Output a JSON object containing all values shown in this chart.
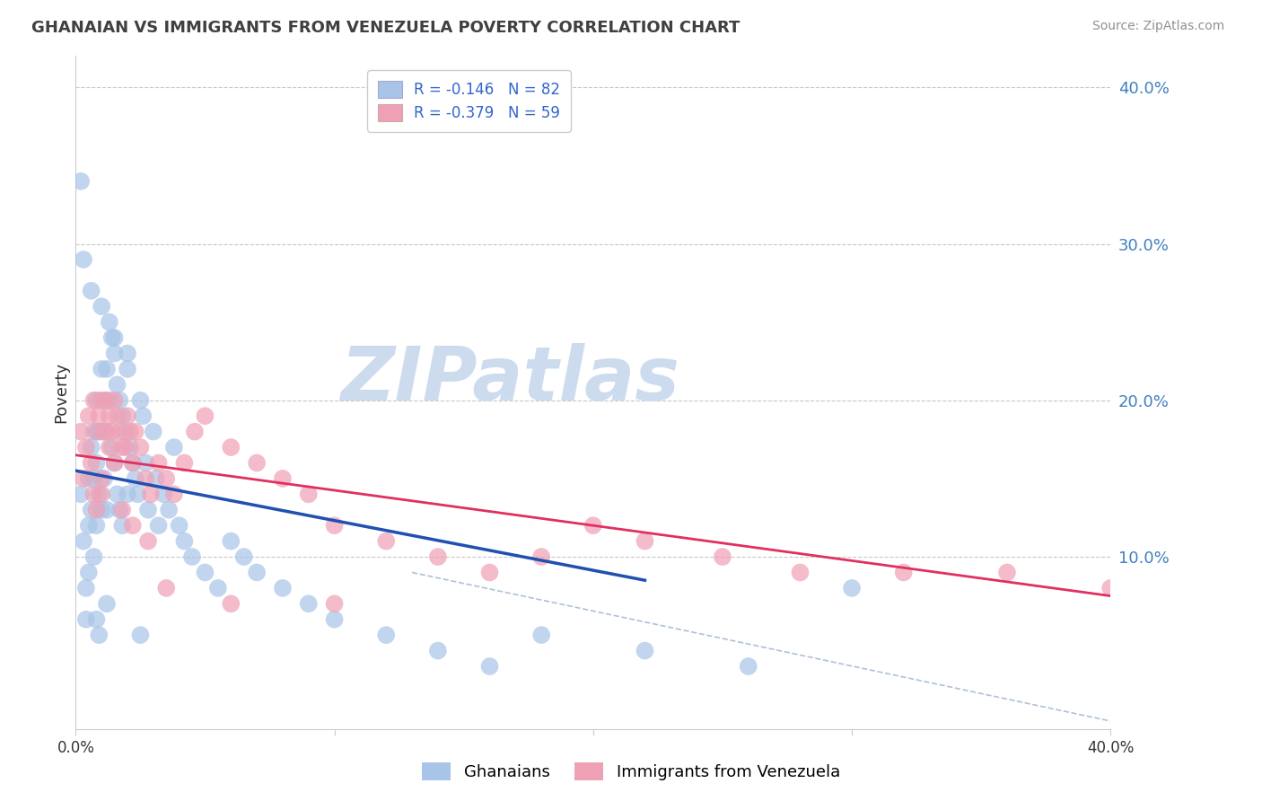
{
  "title": "GHANAIAN VS IMMIGRANTS FROM VENEZUELA POVERTY CORRELATION CHART",
  "source": "Source: ZipAtlas.com",
  "ylabel": "Poverty",
  "xlim": [
    0.0,
    0.4
  ],
  "ylim": [
    -0.01,
    0.42
  ],
  "yticks": [
    0.1,
    0.2,
    0.3,
    0.4
  ],
  "ytick_labels": [
    "10.0%",
    "20.0%",
    "30.0%",
    "40.0%"
  ],
  "xticks": [
    0.0,
    0.1,
    0.2,
    0.3,
    0.4
  ],
  "xtick_labels": [
    "0.0%",
    "",
    "",
    "",
    "40.0%"
  ],
  "background_color": "#ffffff",
  "grid_color": "#c8c8c8",
  "blue_color": "#a8c4e8",
  "pink_color": "#f0a0b4",
  "blue_line_color": "#2050b0",
  "pink_line_color": "#e03060",
  "dashed_line_color": "#b0c0d8",
  "title_color": "#404040",
  "source_color": "#909090",
  "legend_r1": "R = -0.146",
  "legend_n1": "N = 82",
  "legend_r2": "R = -0.379",
  "legend_n2": "N = 59",
  "label1": "Ghanaians",
  "label2": "Immigrants from Venezuela",
  "watermark_text": "ZIPatlas",
  "watermark_color": "#ccdcee",
  "watermark_fontsize": 60,
  "blue_scatter_x": [
    0.002,
    0.003,
    0.004,
    0.004,
    0.005,
    0.005,
    0.005,
    0.006,
    0.006,
    0.007,
    0.007,
    0.007,
    0.008,
    0.008,
    0.008,
    0.009,
    0.009,
    0.01,
    0.01,
    0.01,
    0.011,
    0.011,
    0.012,
    0.012,
    0.012,
    0.013,
    0.013,
    0.014,
    0.014,
    0.015,
    0.015,
    0.016,
    0.016,
    0.017,
    0.017,
    0.018,
    0.018,
    0.019,
    0.02,
    0.02,
    0.021,
    0.022,
    0.023,
    0.024,
    0.025,
    0.026,
    0.027,
    0.028,
    0.03,
    0.031,
    0.032,
    0.034,
    0.036,
    0.038,
    0.04,
    0.042,
    0.045,
    0.05,
    0.055,
    0.06,
    0.065,
    0.07,
    0.08,
    0.09,
    0.1,
    0.12,
    0.14,
    0.16,
    0.18,
    0.22,
    0.26,
    0.3,
    0.002,
    0.003,
    0.006,
    0.01,
    0.015,
    0.02,
    0.025,
    0.008,
    0.012,
    0.009
  ],
  "blue_scatter_y": [
    0.14,
    0.11,
    0.08,
    0.06,
    0.15,
    0.12,
    0.09,
    0.17,
    0.13,
    0.18,
    0.15,
    0.1,
    0.2,
    0.16,
    0.12,
    0.18,
    0.14,
    0.22,
    0.18,
    0.13,
    0.2,
    0.15,
    0.22,
    0.18,
    0.13,
    0.25,
    0.2,
    0.24,
    0.17,
    0.23,
    0.16,
    0.21,
    0.14,
    0.2,
    0.13,
    0.19,
    0.12,
    0.18,
    0.22,
    0.14,
    0.17,
    0.16,
    0.15,
    0.14,
    0.2,
    0.19,
    0.16,
    0.13,
    0.18,
    0.15,
    0.12,
    0.14,
    0.13,
    0.17,
    0.12,
    0.11,
    0.1,
    0.09,
    0.08,
    0.11,
    0.1,
    0.09,
    0.08,
    0.07,
    0.06,
    0.05,
    0.04,
    0.03,
    0.05,
    0.04,
    0.03,
    0.08,
    0.34,
    0.29,
    0.27,
    0.26,
    0.24,
    0.23,
    0.05,
    0.06,
    0.07,
    0.05
  ],
  "pink_scatter_x": [
    0.002,
    0.003,
    0.004,
    0.005,
    0.006,
    0.007,
    0.007,
    0.008,
    0.009,
    0.01,
    0.01,
    0.011,
    0.012,
    0.013,
    0.014,
    0.015,
    0.015,
    0.016,
    0.017,
    0.018,
    0.019,
    0.02,
    0.021,
    0.022,
    0.023,
    0.025,
    0.027,
    0.029,
    0.032,
    0.035,
    0.038,
    0.042,
    0.046,
    0.05,
    0.06,
    0.07,
    0.08,
    0.09,
    0.1,
    0.12,
    0.14,
    0.16,
    0.18,
    0.2,
    0.22,
    0.25,
    0.28,
    0.32,
    0.36,
    0.4,
    0.008,
    0.01,
    0.013,
    0.018,
    0.022,
    0.028,
    0.035,
    0.06,
    0.1
  ],
  "pink_scatter_y": [
    0.18,
    0.15,
    0.17,
    0.19,
    0.16,
    0.2,
    0.14,
    0.18,
    0.19,
    0.2,
    0.15,
    0.18,
    0.2,
    0.19,
    0.18,
    0.2,
    0.16,
    0.19,
    0.18,
    0.17,
    0.17,
    0.19,
    0.18,
    0.16,
    0.18,
    0.17,
    0.15,
    0.14,
    0.16,
    0.15,
    0.14,
    0.16,
    0.18,
    0.19,
    0.17,
    0.16,
    0.15,
    0.14,
    0.12,
    0.11,
    0.1,
    0.09,
    0.1,
    0.12,
    0.11,
    0.1,
    0.09,
    0.09,
    0.09,
    0.08,
    0.13,
    0.14,
    0.17,
    0.13,
    0.12,
    0.11,
    0.08,
    0.07,
    0.07
  ],
  "blue_line_x": [
    0.0,
    0.22
  ],
  "blue_line_y_start": 0.155,
  "blue_line_y_end": 0.085,
  "pink_line_x": [
    0.0,
    0.4
  ],
  "pink_line_y_start": 0.165,
  "pink_line_y_end": 0.075,
  "dashed_line_x": [
    0.13,
    0.4
  ],
  "dashed_line_y_start": 0.09,
  "dashed_line_y_end": -0.005
}
